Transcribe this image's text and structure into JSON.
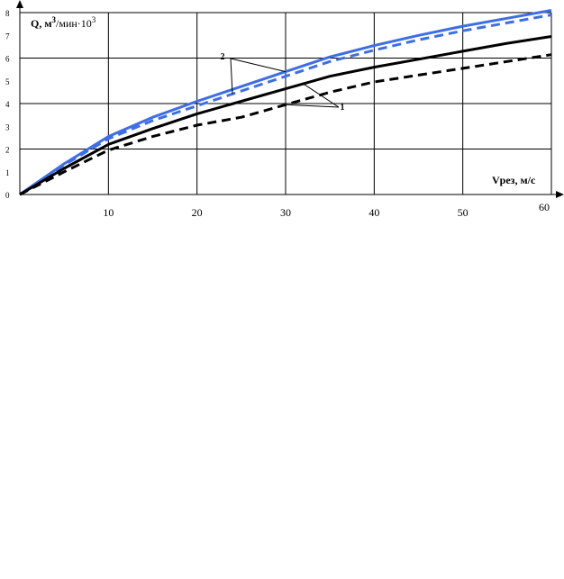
{
  "chart_data": {
    "type": "line",
    "title": "",
    "ylabel": "Q, м³/мин·10³",
    "ylabel_parts": {
      "a": "Q, м",
      "b": "3",
      "c": "/мин·10",
      "d": "3"
    },
    "xlabel": "Vрез, м/с",
    "xlim": [
      0,
      60
    ],
    "ylim": [
      0,
      8
    ],
    "x_ticks": [
      "10",
      "20",
      "30",
      "40",
      "50",
      "60"
    ],
    "y_ticks": [
      "0",
      "1",
      "2",
      "3",
      "4",
      "5",
      "6",
      "7",
      "8"
    ],
    "grid": true,
    "colors": {
      "blue": "#3d6ee6",
      "black": "#000000",
      "grid": "#000000"
    },
    "series": [
      {
        "color": "#3d6ee6",
        "dashed": false,
        "x": [
          0,
          5,
          10,
          15,
          20,
          25,
          30,
          35,
          40,
          45,
          50,
          55,
          60
        ],
        "y": [
          0,
          1.35,
          2.55,
          3.4,
          4.1,
          4.75,
          5.4,
          6.05,
          6.55,
          7.0,
          7.4,
          7.75,
          8.1
        ]
      },
      {
        "color": "#3d6ee6",
        "dashed": true,
        "x": [
          0,
          5,
          10,
          15,
          20,
          25,
          30,
          35,
          40,
          45,
          50,
          55,
          60
        ],
        "y": [
          0,
          1.3,
          2.45,
          3.25,
          3.9,
          4.55,
          5.2,
          5.85,
          6.35,
          6.8,
          7.2,
          7.55,
          7.9
        ]
      },
      {
        "color": "#000000",
        "dashed": false,
        "x": [
          0,
          5,
          10,
          15,
          20,
          25,
          30,
          35,
          40,
          45,
          50,
          55,
          60
        ],
        "y": [
          0,
          1.15,
          2.2,
          2.9,
          3.55,
          4.1,
          4.65,
          5.2,
          5.6,
          5.95,
          6.3,
          6.65,
          6.95
        ]
      },
      {
        "color": "#000000",
        "dashed": true,
        "x": [
          0,
          5,
          10,
          15,
          20,
          25,
          30,
          35,
          40,
          45,
          50,
          55,
          60
        ],
        "y": [
          0,
          1.0,
          1.95,
          2.55,
          3.05,
          3.4,
          3.95,
          4.5,
          4.95,
          5.25,
          5.55,
          5.85,
          6.15
        ]
      }
    ],
    "callouts": [
      {
        "label": "2",
        "targets": [
          1,
          0
        ]
      },
      {
        "label": "1",
        "targets": [
          2,
          3
        ]
      }
    ]
  }
}
